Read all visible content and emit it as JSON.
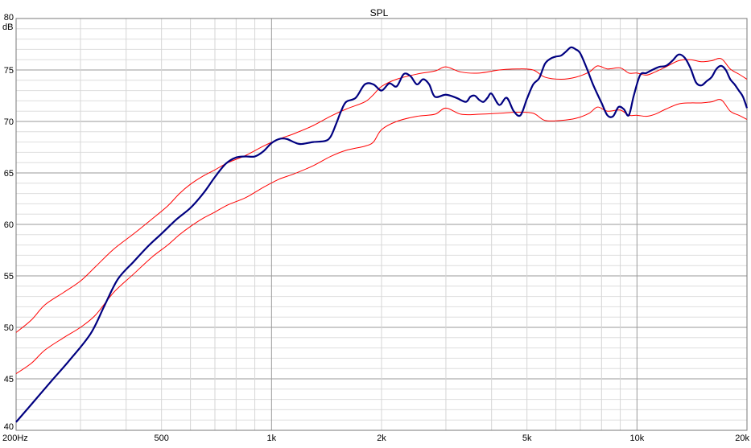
{
  "chart_data": {
    "type": "line",
    "title": "SPL",
    "ylabel": "dB",
    "xlabel": "",
    "x_scale": "log",
    "xlim": [
      200,
      20000
    ],
    "ylim": [
      40,
      80
    ],
    "grid": true,
    "x_tick_labels": [
      {
        "value": 200,
        "label": "200Hz"
      },
      {
        "value": 500,
        "label": "500"
      },
      {
        "value": 1000,
        "label": "1k"
      },
      {
        "value": 2000,
        "label": "2k"
      },
      {
        "value": 5000,
        "label": "5k"
      },
      {
        "value": 10000,
        "label": "10k"
      },
      {
        "value": 20000,
        "label": "20k"
      }
    ],
    "y_tick_labels": [
      {
        "value": 40,
        "label": "40"
      },
      {
        "value": 45,
        "label": "45"
      },
      {
        "value": 50,
        "label": "50"
      },
      {
        "value": 55,
        "label": "55"
      },
      {
        "value": 60,
        "label": "60"
      },
      {
        "value": 65,
        "label": "65"
      },
      {
        "value": 70,
        "label": "70"
      },
      {
        "value": 75,
        "label": "75"
      },
      {
        "value": 80,
        "label": "80"
      }
    ],
    "series": [
      {
        "color": "#000080",
        "width": 2.2,
        "points": [
          [
            200,
            40.8
          ],
          [
            220,
            42.5
          ],
          [
            250,
            44.8
          ],
          [
            280,
            46.8
          ],
          [
            320,
            49.4
          ],
          [
            350,
            52.2
          ],
          [
            380,
            54.7
          ],
          [
            420,
            56.4
          ],
          [
            460,
            57.9
          ],
          [
            500,
            59.1
          ],
          [
            550,
            60.5
          ],
          [
            600,
            61.6
          ],
          [
            650,
            63.0
          ],
          [
            700,
            64.6
          ],
          [
            750,
            65.9
          ],
          [
            800,
            66.5
          ],
          [
            850,
            66.6
          ],
          [
            900,
            66.6
          ],
          [
            950,
            67.1
          ],
          [
            1000,
            67.9
          ],
          [
            1050,
            68.3
          ],
          [
            1100,
            68.3
          ],
          [
            1150,
            68.0
          ],
          [
            1200,
            67.8
          ],
          [
            1300,
            68.0
          ],
          [
            1400,
            68.1
          ],
          [
            1450,
            68.5
          ],
          [
            1500,
            69.7
          ],
          [
            1550,
            71.0
          ],
          [
            1600,
            71.9
          ],
          [
            1700,
            72.3
          ],
          [
            1800,
            73.6
          ],
          [
            1900,
            73.6
          ],
          [
            2000,
            73.0
          ],
          [
            2100,
            73.7
          ],
          [
            2200,
            73.4
          ],
          [
            2300,
            74.6
          ],
          [
            2400,
            74.4
          ],
          [
            2500,
            73.6
          ],
          [
            2600,
            74.1
          ],
          [
            2700,
            73.6
          ],
          [
            2800,
            72.4
          ],
          [
            3000,
            72.6
          ],
          [
            3200,
            72.3
          ],
          [
            3400,
            71.9
          ],
          [
            3500,
            72.4
          ],
          [
            3600,
            72.5
          ],
          [
            3700,
            72.1
          ],
          [
            3800,
            71.9
          ],
          [
            3900,
            72.3
          ],
          [
            4000,
            72.7
          ],
          [
            4200,
            71.6
          ],
          [
            4400,
            72.3
          ],
          [
            4600,
            71.0
          ],
          [
            4800,
            70.6
          ],
          [
            5000,
            72.2
          ],
          [
            5200,
            73.6
          ],
          [
            5400,
            74.2
          ],
          [
            5600,
            75.6
          ],
          [
            5800,
            76.1
          ],
          [
            6000,
            76.3
          ],
          [
            6200,
            76.4
          ],
          [
            6400,
            76.8
          ],
          [
            6600,
            77.2
          ],
          [
            6800,
            77.0
          ],
          [
            7000,
            76.6
          ],
          [
            7300,
            75.1
          ],
          [
            7600,
            73.5
          ],
          [
            8000,
            71.8
          ],
          [
            8300,
            70.6
          ],
          [
            8600,
            70.5
          ],
          [
            8900,
            71.4
          ],
          [
            9200,
            71.2
          ],
          [
            9500,
            70.6
          ],
          [
            9800,
            72.5
          ],
          [
            10200,
            74.5
          ],
          [
            10600,
            74.7
          ],
          [
            11000,
            75.0
          ],
          [
            11500,
            75.3
          ],
          [
            12000,
            75.4
          ],
          [
            12500,
            75.9
          ],
          [
            13000,
            76.5
          ],
          [
            13500,
            76.2
          ],
          [
            14000,
            75.2
          ],
          [
            14500,
            73.8
          ],
          [
            15000,
            73.5
          ],
          [
            15500,
            73.9
          ],
          [
            16000,
            74.3
          ],
          [
            16500,
            75.1
          ],
          [
            17000,
            75.4
          ],
          [
            17500,
            75.0
          ],
          [
            18000,
            74.1
          ],
          [
            18500,
            73.6
          ],
          [
            19000,
            73.0
          ],
          [
            19500,
            72.4
          ],
          [
            20000,
            71.3
          ]
        ]
      },
      {
        "color": "#ff0000",
        "width": 1,
        "points": [
          [
            200,
            49.5
          ],
          [
            220,
            50.7
          ],
          [
            240,
            52.2
          ],
          [
            270,
            53.4
          ],
          [
            300,
            54.5
          ],
          [
            330,
            55.9
          ],
          [
            370,
            57.6
          ],
          [
            420,
            59.1
          ],
          [
            470,
            60.5
          ],
          [
            520,
            61.8
          ],
          [
            560,
            63.0
          ],
          [
            600,
            63.9
          ],
          [
            650,
            64.7
          ],
          [
            700,
            65.3
          ],
          [
            760,
            66.0
          ],
          [
            850,
            66.7
          ],
          [
            950,
            67.6
          ],
          [
            1050,
            68.3
          ],
          [
            1150,
            68.8
          ],
          [
            1300,
            69.6
          ],
          [
            1450,
            70.5
          ],
          [
            1600,
            71.2
          ],
          [
            1800,
            71.9
          ],
          [
            1900,
            72.6
          ],
          [
            2000,
            73.4
          ],
          [
            2200,
            74.1
          ],
          [
            2500,
            74.6
          ],
          [
            2800,
            74.9
          ],
          [
            3000,
            75.3
          ],
          [
            3300,
            74.8
          ],
          [
            3700,
            74.7
          ],
          [
            4200,
            75.0
          ],
          [
            4700,
            75.1
          ],
          [
            5200,
            75.0
          ],
          [
            5600,
            74.3
          ],
          [
            6200,
            74.1
          ],
          [
            6800,
            74.3
          ],
          [
            7400,
            74.8
          ],
          [
            7800,
            75.4
          ],
          [
            8300,
            75.1
          ],
          [
            9000,
            75.2
          ],
          [
            9500,
            74.7
          ],
          [
            10000,
            74.7
          ],
          [
            10600,
            74.5
          ],
          [
            11200,
            74.8
          ],
          [
            12000,
            75.3
          ],
          [
            13000,
            75.9
          ],
          [
            14000,
            76.0
          ],
          [
            15000,
            75.8
          ],
          [
            16000,
            75.9
          ],
          [
            17000,
            76.1
          ],
          [
            18000,
            75.1
          ],
          [
            19000,
            74.6
          ],
          [
            20000,
            74.1
          ]
        ]
      },
      {
        "color": "#ff0000",
        "width": 1,
        "points": [
          [
            200,
            45.5
          ],
          [
            220,
            46.5
          ],
          [
            240,
            47.8
          ],
          [
            270,
            49.0
          ],
          [
            300,
            50.0
          ],
          [
            330,
            51.2
          ],
          [
            370,
            53.4
          ],
          [
            420,
            55.2
          ],
          [
            470,
            56.8
          ],
          [
            520,
            58.0
          ],
          [
            560,
            59.0
          ],
          [
            600,
            59.8
          ],
          [
            650,
            60.6
          ],
          [
            700,
            61.2
          ],
          [
            760,
            61.9
          ],
          [
            850,
            62.6
          ],
          [
            950,
            63.6
          ],
          [
            1050,
            64.4
          ],
          [
            1150,
            64.9
          ],
          [
            1300,
            65.7
          ],
          [
            1450,
            66.6
          ],
          [
            1600,
            67.2
          ],
          [
            1800,
            67.6
          ],
          [
            1900,
            68.0
          ],
          [
            2000,
            69.2
          ],
          [
            2200,
            70.0
          ],
          [
            2500,
            70.5
          ],
          [
            2800,
            70.7
          ],
          [
            3000,
            71.3
          ],
          [
            3300,
            70.7
          ],
          [
            3700,
            70.7
          ],
          [
            4200,
            70.8
          ],
          [
            4700,
            70.9
          ],
          [
            5200,
            70.8
          ],
          [
            5600,
            70.1
          ],
          [
            6200,
            70.1
          ],
          [
            6800,
            70.3
          ],
          [
            7400,
            70.8
          ],
          [
            7800,
            71.4
          ],
          [
            8300,
            71.0
          ],
          [
            9000,
            71.1
          ],
          [
            9500,
            70.6
          ],
          [
            10000,
            70.6
          ],
          [
            10600,
            70.5
          ],
          [
            11200,
            70.7
          ],
          [
            12000,
            71.2
          ],
          [
            13000,
            71.7
          ],
          [
            14000,
            71.8
          ],
          [
            15000,
            71.8
          ],
          [
            16000,
            71.9
          ],
          [
            17000,
            72.1
          ],
          [
            18000,
            71.0
          ],
          [
            19000,
            70.6
          ],
          [
            20000,
            70.2
          ]
        ]
      }
    ]
  }
}
